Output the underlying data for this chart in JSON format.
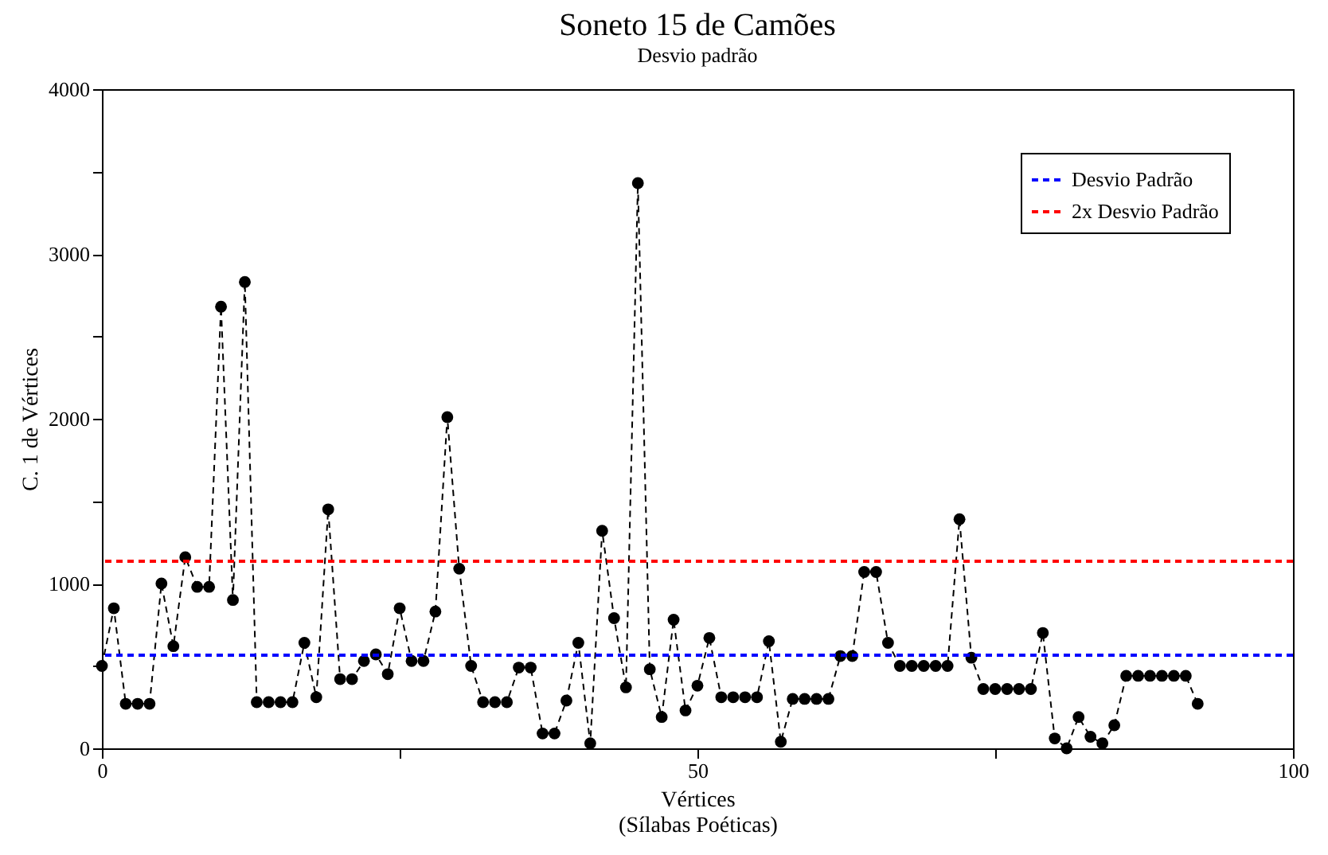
{
  "chart_data": {
    "type": "line",
    "title": "Soneto 15 de Camões",
    "subtitle": "Desvio padrão",
    "xlabel": "Vértices\n(Sílabas Poéticas)",
    "ylabel": "C. 1 de Vértices",
    "x": [
      0,
      1,
      2,
      3,
      4,
      5,
      6,
      7,
      8,
      9,
      10,
      11,
      12,
      13,
      14,
      15,
      16,
      17,
      18,
      19,
      20,
      21,
      22,
      23,
      24,
      25,
      26,
      27,
      28,
      29,
      30,
      31,
      32,
      33,
      34,
      35,
      36,
      37,
      38,
      39,
      40,
      41,
      42,
      43,
      44,
      45,
      46,
      47,
      48,
      49,
      50,
      51,
      52,
      53,
      54,
      55,
      56,
      57,
      58,
      59,
      60,
      61,
      62,
      63,
      64,
      65,
      66,
      67,
      68,
      69,
      70,
      71,
      72,
      73,
      74,
      75,
      76,
      77,
      78,
      79,
      80,
      81,
      82,
      83,
      84,
      85,
      86,
      87,
      88,
      89,
      90,
      91,
      92
    ],
    "series": [
      {
        "color": "#000000",
        "line_style": "dashed",
        "marker": "circle",
        "values": [
          500,
          850,
          270,
          270,
          270,
          1000,
          620,
          1160,
          980,
          980,
          2680,
          900,
          2830,
          280,
          280,
          280,
          280,
          640,
          310,
          1450,
          420,
          420,
          530,
          570,
          450,
          850,
          530,
          530,
          830,
          2010,
          1090,
          500,
          280,
          280,
          280,
          490,
          490,
          90,
          90,
          290,
          640,
          30,
          1320,
          790,
          370,
          3430,
          480,
          190,
          780,
          230,
          380,
          670,
          310,
          310,
          310,
          310,
          650,
          40,
          300,
          300,
          300,
          300,
          560,
          560,
          1070,
          1070,
          640,
          500,
          500,
          500,
          500,
          500,
          1390,
          550,
          360,
          360,
          360,
          360,
          360,
          700,
          60,
          0,
          190,
          70,
          30,
          140,
          440,
          440,
          440,
          440,
          440,
          440,
          270
        ]
      }
    ],
    "ref_lines": [
      {
        "axis": "y",
        "value": 565,
        "label": "Desvio Padrão",
        "color": "#0000ff",
        "line_style": "dashed"
      },
      {
        "axis": "y",
        "value": 1135,
        "label": "2x Desvio Padrão",
        "color": "#ff0000",
        "line_style": "dashed"
      }
    ],
    "xlim": [
      0,
      100
    ],
    "xticks": [
      0,
      {
        "value": 25,
        "label": null
      },
      50,
      {
        "value": 75,
        "label": null
      },
      100
    ],
    "ylim": [
      0,
      4000
    ],
    "yticks": [
      0,
      {
        "value": 500,
        "label": null
      },
      1000,
      {
        "value": 1500,
        "label": null
      },
      2000,
      {
        "value": 2500,
        "label": null
      },
      3000,
      {
        "value": 3500,
        "label": null
      },
      4000
    ],
    "grid": false,
    "legend": "top right"
  }
}
